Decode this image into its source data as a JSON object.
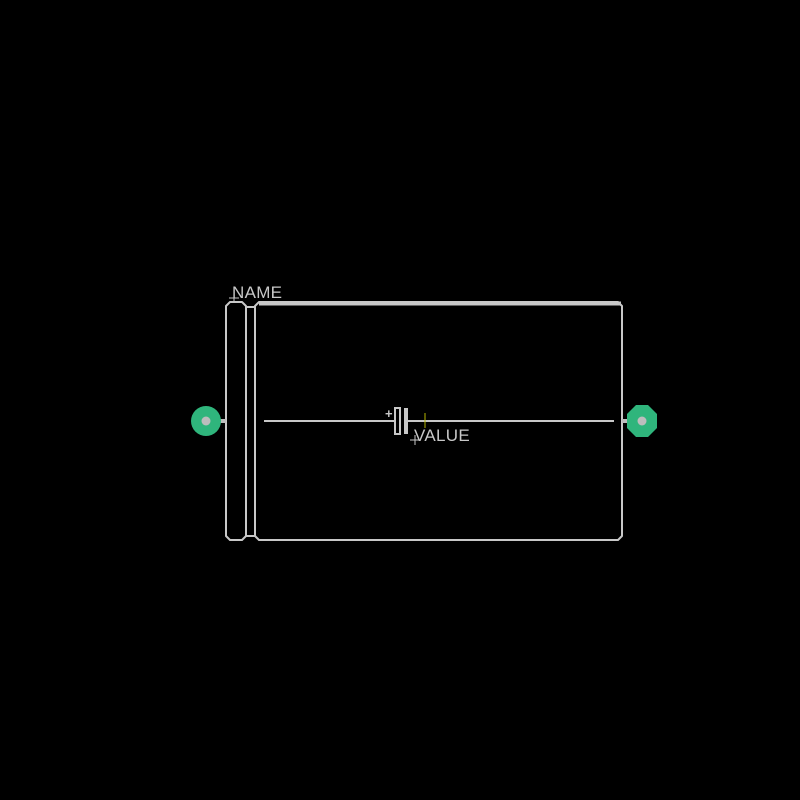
{
  "labels": {
    "name": "NAME",
    "value": "VALUE"
  },
  "polarity": {
    "plus": "+"
  },
  "colors": {
    "background": "#000000",
    "silkscreen": "#c8c8c8",
    "pad": "#2fb57c",
    "drill": "#bdbdbd",
    "origin_marker": "#b4b400"
  },
  "icons": {
    "pad_round": "round-pad-icon",
    "pad_octagon": "octagon-pad-icon",
    "capacitor_symbol": "polarized-capacitor-icon"
  }
}
